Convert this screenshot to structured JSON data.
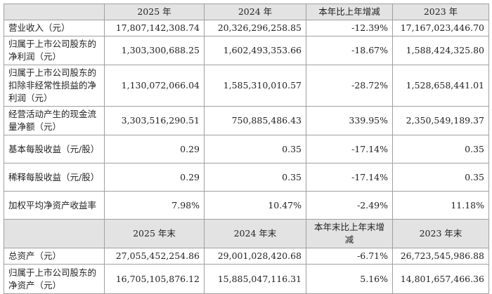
{
  "table": {
    "header": [
      "2025 年",
      "2024 年",
      "本年比上年增减",
      "2023 年"
    ],
    "rows": [
      [
        "营业收入（元）",
        "17,807,142,308.74",
        "20,326,296,258.85",
        "-12.39%",
        "17,167,023,446.70"
      ],
      [
        "归属于上市公司股东的净利润（元）",
        "1,303,300,688.25",
        "1,602,493,353.66",
        "-18.67%",
        "1,588,424,325.80"
      ],
      [
        "归属于上市公司股东的扣除非经常性损益的净利润（元）",
        "1,130,072,066.04",
        "1,585,310,010.57",
        "-28.72%",
        "1,528,658,441.01"
      ],
      [
        "经营活动产生的现金流量净额（元）",
        "3,303,516,290.51",
        "750,885,486.43",
        "339.95%",
        "2,350,549,189.37"
      ],
      [
        "基本每股收益（元/股）",
        "0.29",
        "0.35",
        "-17.14%",
        "0.35"
      ],
      [
        "稀释每股收益（元/股）",
        "0.29",
        "0.35",
        "-17.14%",
        "0.35"
      ],
      [
        "加权平均净资产收益率",
        "7.98%",
        "10.47%",
        "-2.49%",
        "11.18%"
      ]
    ],
    "header2": [
      "2025 年末",
      "2024 年末",
      "本年末比上年末增减",
      "2023 年末"
    ],
    "rows2": [
      [
        "总资产（元）",
        "27,055,452,254.86",
        "29,001,028,420.68",
        "-6.71%",
        "26,723,545,986.88"
      ],
      [
        "归属于上市公司股东的净资产（元）",
        "16,705,105,876.12",
        "15,885,047,116.31",
        "5.16%",
        "14,801,657,466.36"
      ]
    ]
  }
}
